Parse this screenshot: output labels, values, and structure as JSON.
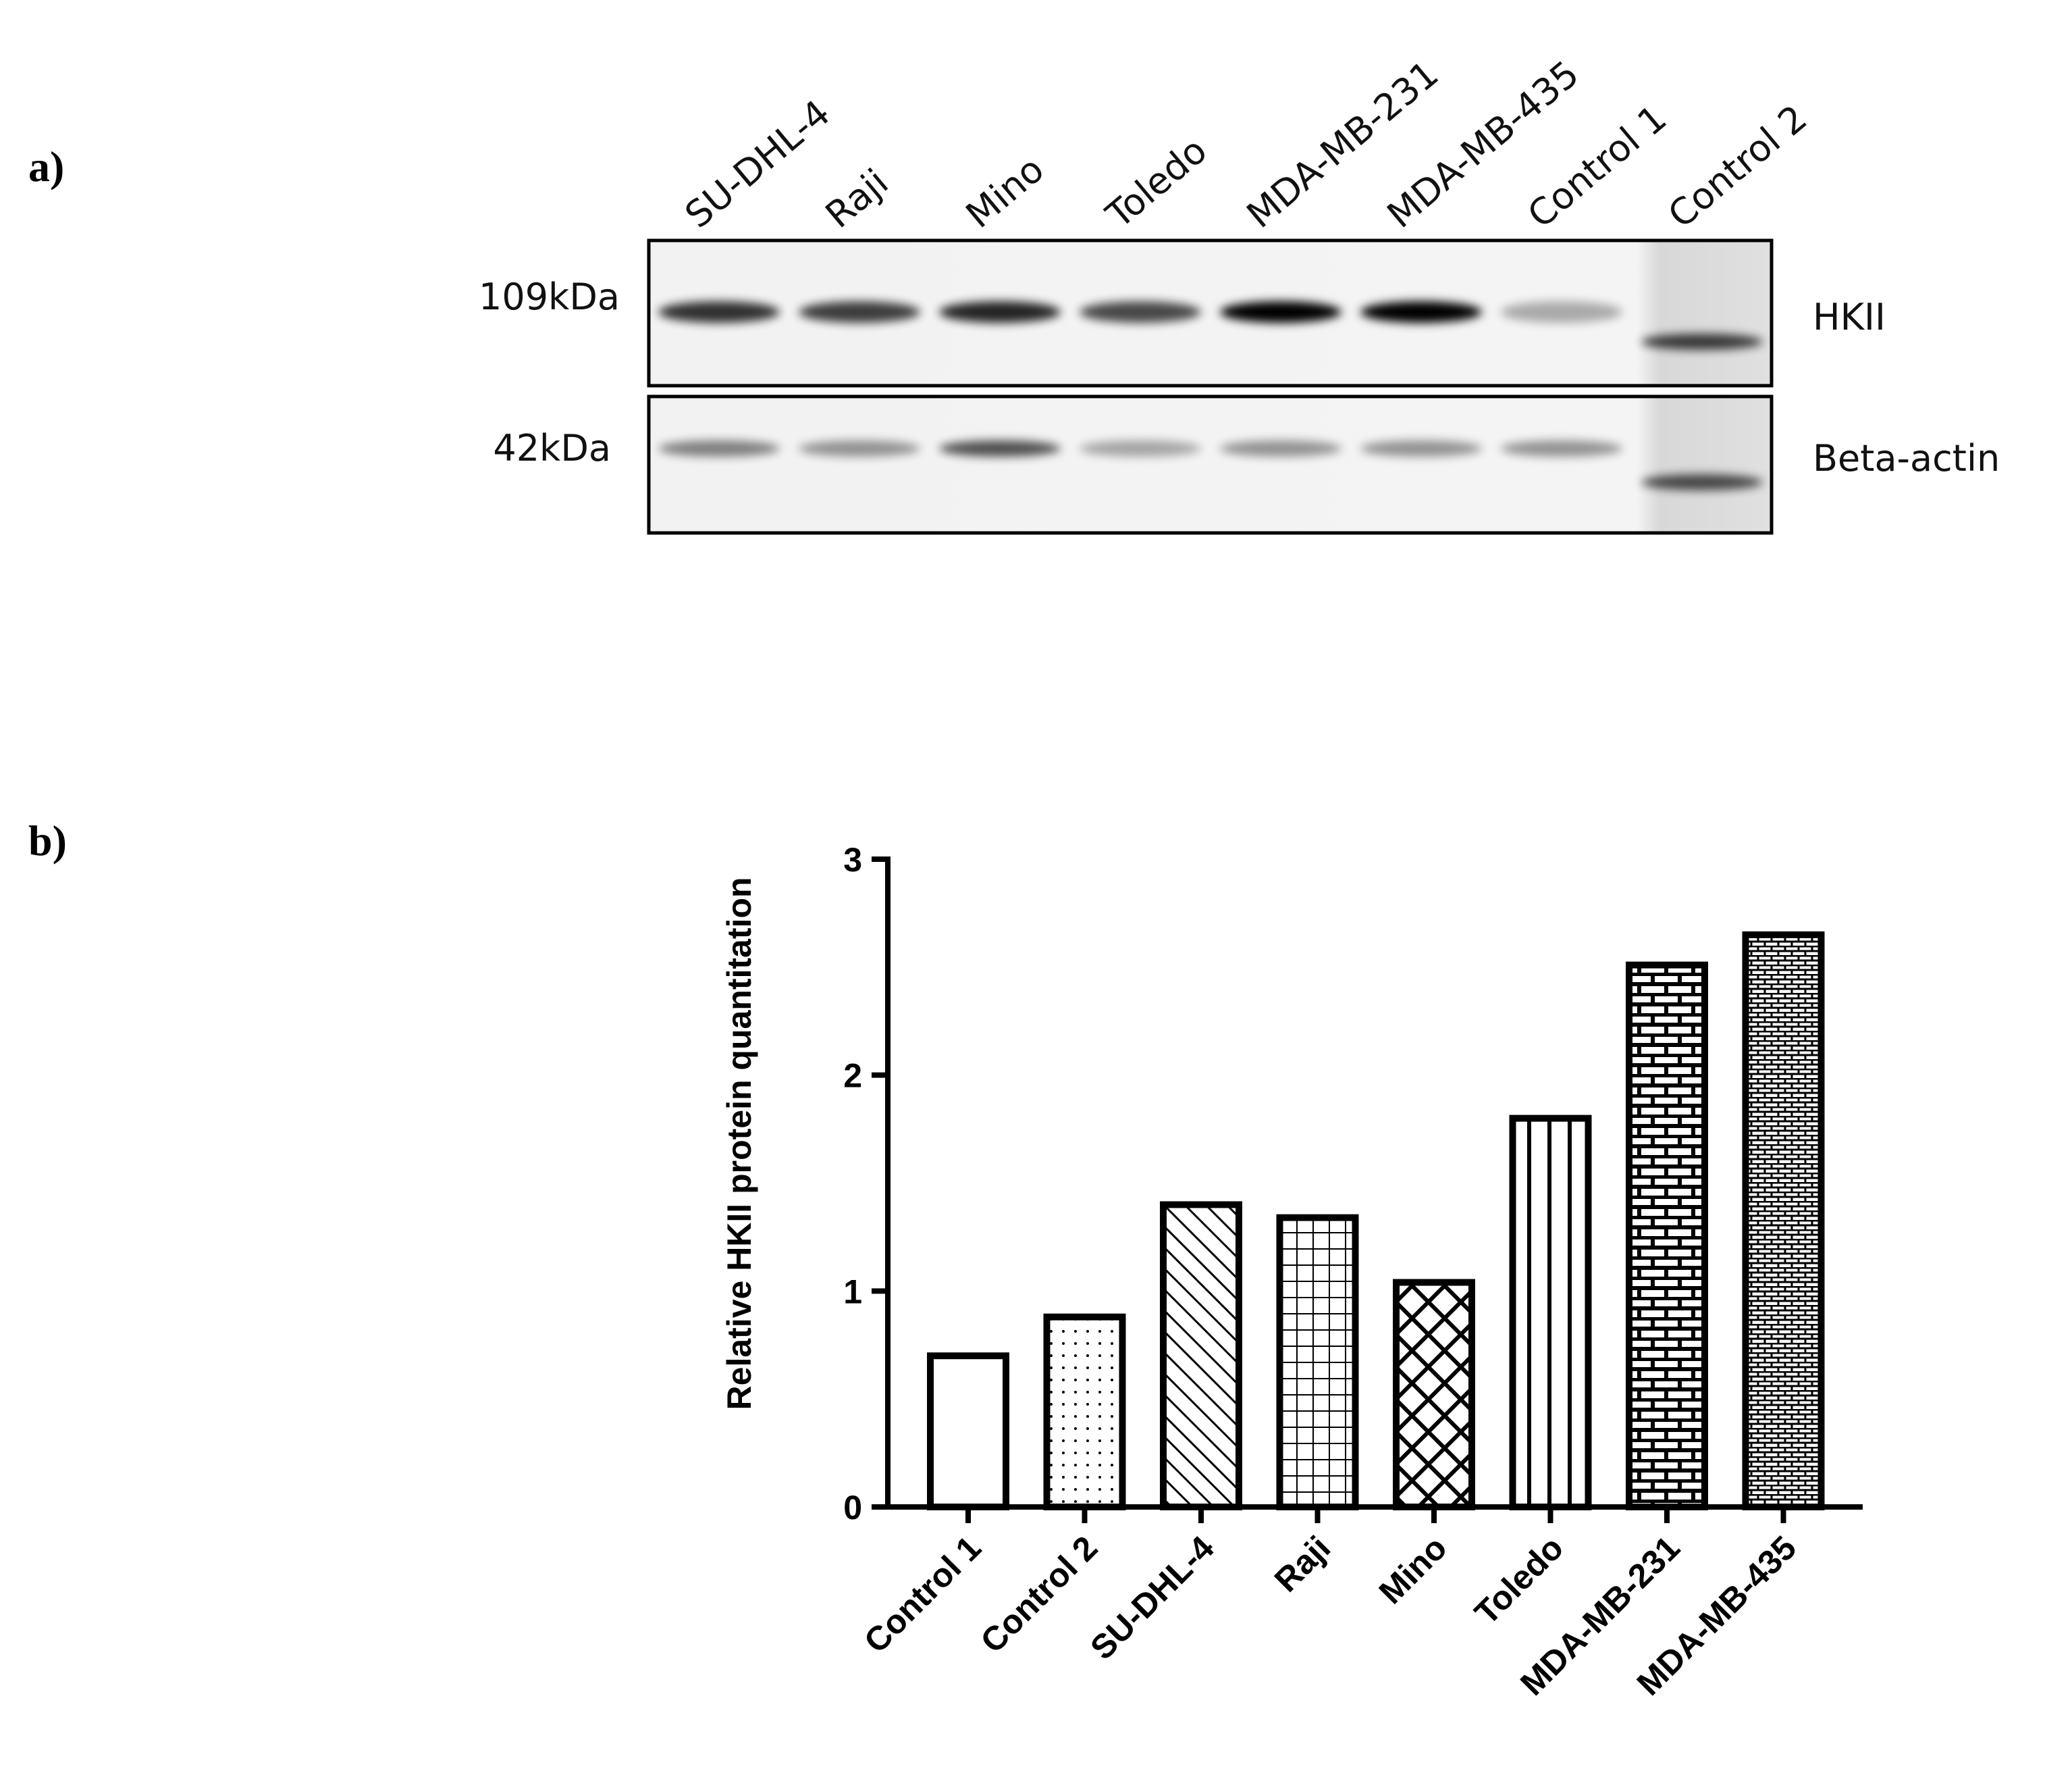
{
  "panel_a": {
    "label": "a)",
    "lanes": [
      "SU-DHL-4",
      "Raji",
      "Mino",
      "Toledo",
      "MDA-MB-231",
      "MDA-MB-435",
      "Control 1",
      "Control 2"
    ],
    "markers": [
      "109kDa",
      "42kDa"
    ],
    "proteins": [
      "HKII",
      "Beta-actin"
    ]
  },
  "panel_b": {
    "label": "b)"
  },
  "chart_data": {
    "type": "bar",
    "y_label": "Relative HKII protein quantitation",
    "categories": [
      "Control 1",
      "Control 2",
      "SU-DHL-4",
      "Raji",
      "Mino",
      "Toledo",
      "MDA-MB-231",
      "MDA-MB-435"
    ],
    "values": [
      0.7,
      0.88,
      1.4,
      1.34,
      1.04,
      1.8,
      2.51,
      2.65
    ],
    "patterns": [
      "plain",
      "dots",
      "diagonal",
      "grid",
      "crosshatch",
      "vertical",
      "brick",
      "finebrick"
    ],
    "color": "#000000",
    "ylim": [
      0,
      3
    ],
    "yticks": [
      0,
      1,
      2,
      3
    ]
  }
}
